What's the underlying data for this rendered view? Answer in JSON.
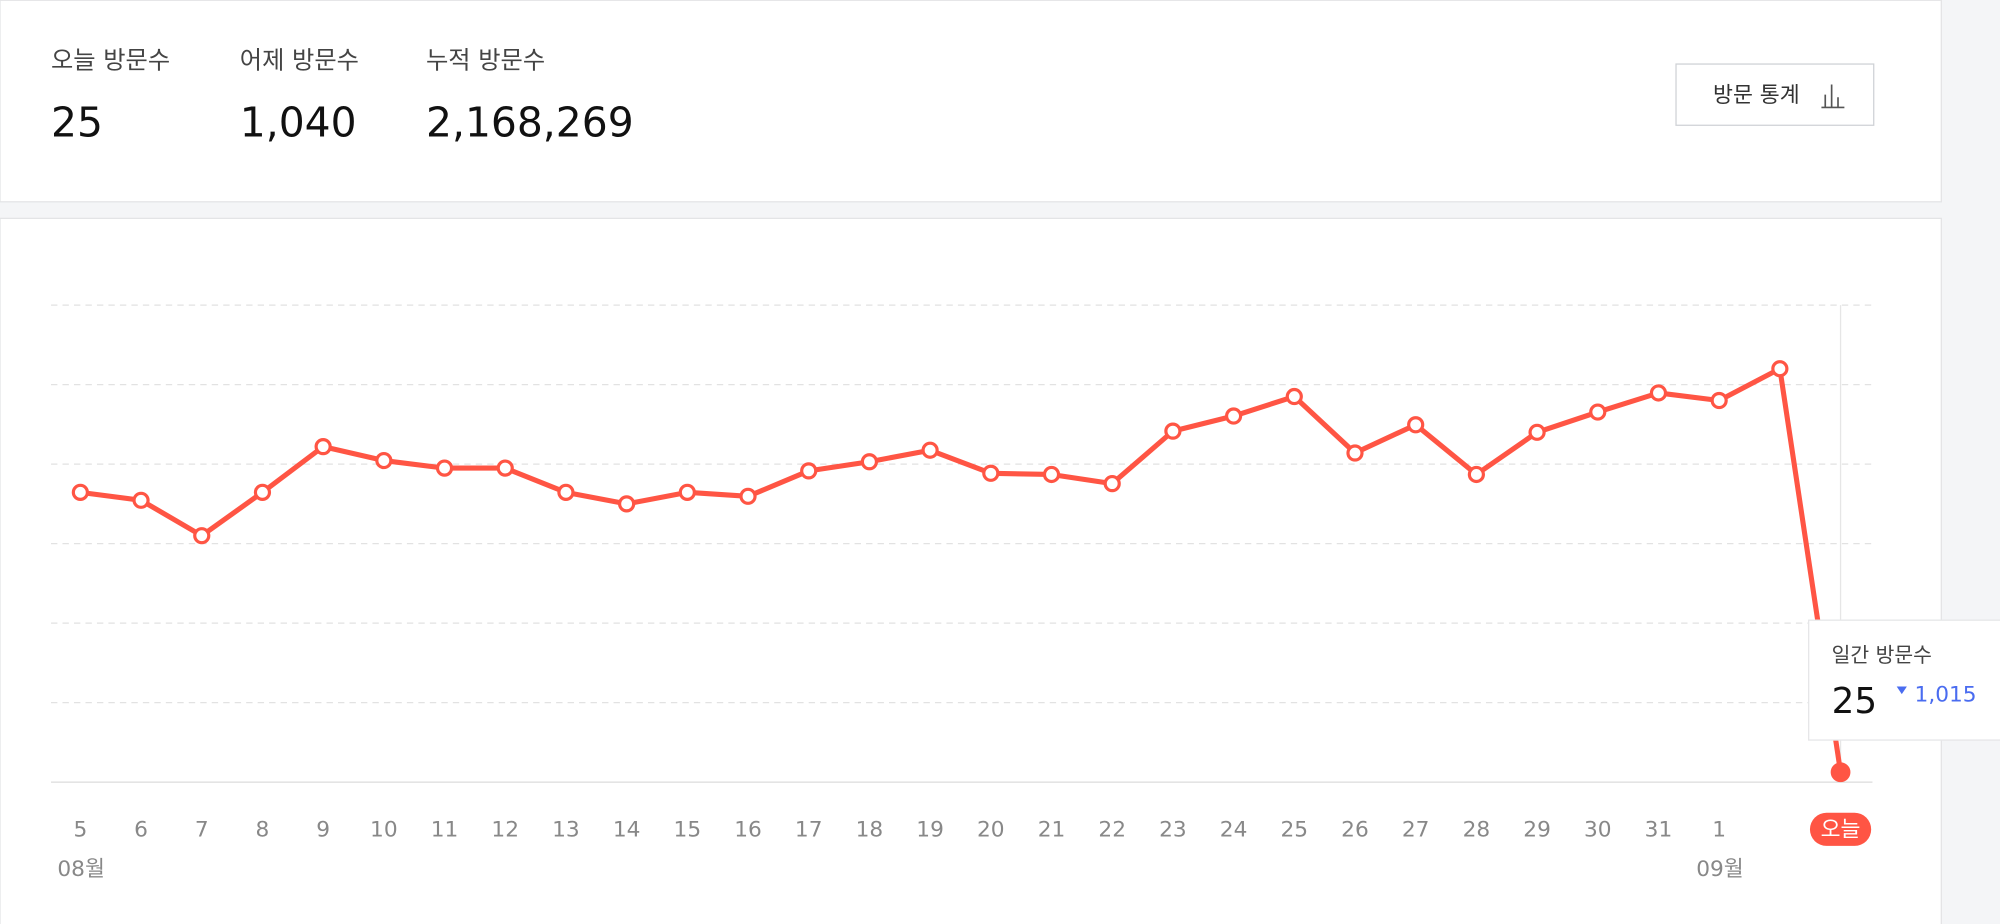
{
  "stats": [
    {
      "label": "오늘 방문수",
      "value": "25"
    },
    {
      "label": "어제 방문수",
      "value": "1,040"
    },
    {
      "label": "누적 방문수",
      "value": "2,168,269"
    }
  ],
  "button": "방문 통계",
  "tooltip": {
    "title": "일간 방문수",
    "value": "25",
    "change": "1,015"
  },
  "chart_data": {
    "type": "line",
    "categories": [
      "5",
      "6",
      "7",
      "8",
      "9",
      "10",
      "11",
      "12",
      "13",
      "14",
      "15",
      "16",
      "17",
      "18",
      "19",
      "20",
      "21",
      "22",
      "23",
      "24",
      "25",
      "26",
      "27",
      "28",
      "29",
      "30",
      "31",
      "1",
      null,
      "오늘"
    ],
    "month_labels": [
      {
        "label": "08월",
        "start": 0
      },
      {
        "label": "09월",
        "start": 27
      }
    ],
    "series": [
      {
        "color": "#ff5544",
        "values": [
          729,
          709,
          620,
          729,
          844,
          809,
          790,
          790,
          729,
          700,
          729,
          719,
          783,
          806,
          835,
          777,
          774,
          751,
          883,
          921,
          970,
          828,
          899,
          774,
          880,
          931,
          979,
          960,
          1040,
          25
        ]
      }
    ],
    "ylim": [
      0,
      1200
    ],
    "yticks": [
      0,
      200,
      400,
      600,
      800,
      1000,
      1200
    ],
    "grid": true
  }
}
